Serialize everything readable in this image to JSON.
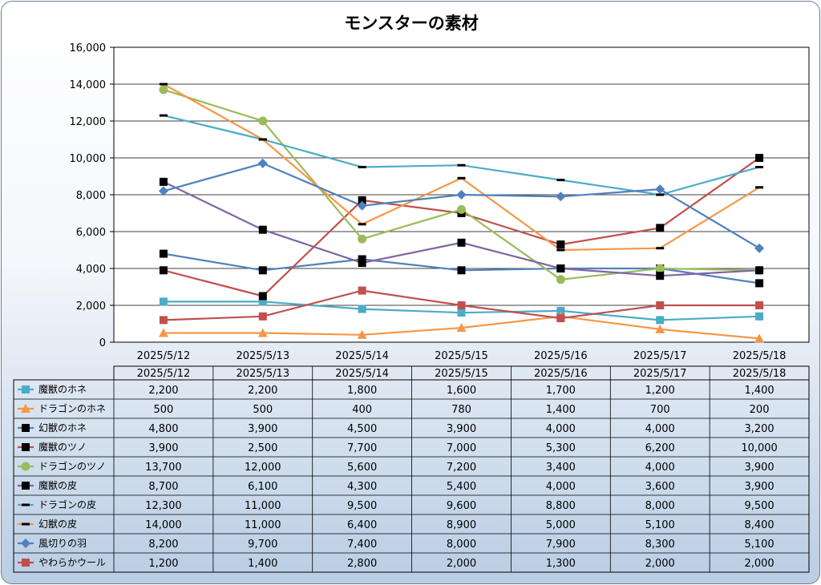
{
  "chart_data": {
    "type": "line",
    "title": "モンスターの素材",
    "categories": [
      "2025/5/12",
      "2025/5/13",
      "2025/5/14",
      "2025/5/15",
      "2025/5/16",
      "2025/5/17",
      "2025/5/18"
    ],
    "ylim": [
      0,
      16000
    ],
    "yticks": [
      0,
      2000,
      4000,
      6000,
      8000,
      10000,
      12000,
      14000,
      16000
    ],
    "ytick_labels": [
      "0",
      "2,000",
      "4,000",
      "6,000",
      "8,000",
      "10,000",
      "12,000",
      "14,000",
      "16,000"
    ],
    "grid": true,
    "legend_placement": "data-table",
    "series": [
      {
        "name": "魔獣のホネ",
        "color": "#4bacc6",
        "marker": "square",
        "values": [
          2200,
          2200,
          1800,
          1600,
          1700,
          1200,
          1400
        ],
        "labels": [
          "2,200",
          "2,200",
          "1,800",
          "1,600",
          "1,700",
          "1,200",
          "1,400"
        ]
      },
      {
        "name": "ドラゴンのホネ",
        "color": "#f79646",
        "marker": "triangle",
        "values": [
          500,
          500,
          400,
          780,
          1400,
          700,
          200
        ],
        "labels": [
          "500",
          "500",
          "400",
          "780",
          "1,400",
          "700",
          "200"
        ]
      },
      {
        "name": "幻獣のホネ",
        "color": "#4f81bd",
        "marker": "black-square",
        "values": [
          4800,
          3900,
          4500,
          3900,
          4000,
          4000,
          3200
        ],
        "labels": [
          "4,800",
          "3,900",
          "4,500",
          "3,900",
          "4,000",
          "4,000",
          "3,200"
        ]
      },
      {
        "name": "魔獣のツノ",
        "color": "#c0504d",
        "marker": "black-square",
        "values": [
          3900,
          2500,
          7700,
          7000,
          5300,
          6200,
          10000
        ],
        "labels": [
          "3,900",
          "2,500",
          "7,700",
          "7,000",
          "5,300",
          "6,200",
          "10,000"
        ]
      },
      {
        "name": "ドラゴンのツノ",
        "color": "#9bbb59",
        "marker": "circle",
        "values": [
          13700,
          12000,
          5600,
          7200,
          3400,
          4000,
          3900
        ],
        "labels": [
          "13,700",
          "12,000",
          "5,600",
          "7,200",
          "3,400",
          "4,000",
          "3,900"
        ]
      },
      {
        "name": "魔獣の皮",
        "color": "#8064a2",
        "marker": "black-square",
        "values": [
          8700,
          6100,
          4300,
          5400,
          4000,
          3600,
          3900
        ],
        "labels": [
          "8,700",
          "6,100",
          "4,300",
          "5,400",
          "4,000",
          "3,600",
          "3,900"
        ]
      },
      {
        "name": "ドラゴンの皮",
        "color": "#4bacc6",
        "marker": "dash",
        "values": [
          12300,
          11000,
          9500,
          9600,
          8800,
          8000,
          9500
        ],
        "labels": [
          "12,300",
          "11,000",
          "9,500",
          "9,600",
          "8,800",
          "8,000",
          "9,500"
        ]
      },
      {
        "name": "幻獣の皮",
        "color": "#f79646",
        "marker": "dash",
        "values": [
          14000,
          11000,
          6400,
          8900,
          5000,
          5100,
          8400
        ],
        "labels": [
          "14,000",
          "11,000",
          "6,400",
          "8,900",
          "5,000",
          "5,100",
          "8,400"
        ]
      },
      {
        "name": "風切りの羽",
        "color": "#4f81bd",
        "marker": "diamond",
        "values": [
          8200,
          9700,
          7400,
          8000,
          7900,
          8300,
          5100
        ],
        "labels": [
          "8,200",
          "9,700",
          "7,400",
          "8,000",
          "7,900",
          "8,300",
          "5,100"
        ]
      },
      {
        "name": "やわらかウール",
        "color": "#c0504d",
        "marker": "square",
        "values": [
          1200,
          1400,
          2800,
          2000,
          1300,
          2000,
          2000
        ],
        "labels": [
          "1,200",
          "1,400",
          "2,800",
          "2,000",
          "1,300",
          "2,000",
          "2,000"
        ]
      }
    ]
  }
}
